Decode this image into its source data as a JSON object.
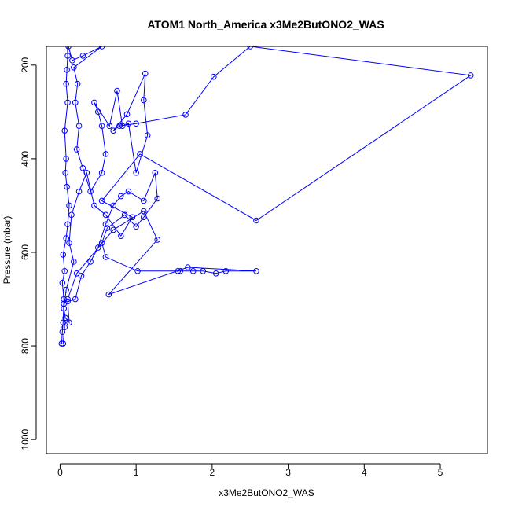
{
  "chart_data": {
    "type": "line",
    "title": "ATOM1 North_America x3Me2ButONO2_WAS",
    "xlabel": "x3Me2ButONO2_WAS",
    "ylabel": "Pressure (mbar)",
    "xlim": [
      -0.18,
      5.62
    ],
    "ylim": [
      1030,
      160
    ],
    "y_reversed": true,
    "x_ticks": [
      0,
      1,
      2,
      3,
      4,
      5
    ],
    "y_ticks": [
      200,
      400,
      600,
      800,
      1000
    ],
    "grid": false,
    "legend": "none",
    "color": "#0000ff",
    "points": [
      [
        0.02,
        795
      ],
      [
        0.03,
        770
      ],
      [
        0.04,
        750
      ],
      [
        0.05,
        700
      ],
      [
        0.03,
        665
      ],
      [
        0.06,
        640
      ],
      [
        0.04,
        605
      ],
      [
        0.08,
        570
      ],
      [
        0.1,
        540
      ],
      [
        0.12,
        500
      ],
      [
        0.09,
        460
      ],
      [
        0.07,
        430
      ],
      [
        0.08,
        400
      ],
      [
        0.06,
        340
      ],
      [
        0.1,
        280
      ],
      [
        0.08,
        240
      ],
      [
        0.09,
        210
      ],
      [
        0.1,
        180
      ],
      [
        0.09,
        120
      ],
      [
        0.11,
        160
      ],
      [
        0.16,
        190
      ],
      [
        0.3,
        180
      ],
      [
        0.55,
        160
      ],
      [
        0.18,
        205
      ],
      [
        0.23,
        240
      ],
      [
        0.2,
        280
      ],
      [
        0.25,
        330
      ],
      [
        0.22,
        380
      ],
      [
        0.3,
        420
      ],
      [
        0.4,
        470
      ],
      [
        0.55,
        430
      ],
      [
        0.6,
        390
      ],
      [
        0.55,
        330
      ],
      [
        0.5,
        300
      ],
      [
        0.45,
        280
      ],
      [
        0.65,
        330
      ],
      [
        0.75,
        255
      ],
      [
        0.82,
        330
      ],
      [
        0.9,
        325
      ],
      [
        1.0,
        430
      ],
      [
        1.15,
        350
      ],
      [
        1.1,
        275
      ],
      [
        1.12,
        218
      ],
      [
        0.88,
        305
      ],
      [
        0.7,
        340
      ],
      [
        0.78,
        330
      ],
      [
        1.0,
        325
      ],
      [
        1.65,
        306
      ],
      [
        2.02,
        225
      ],
      [
        2.5,
        160
      ],
      [
        5.4,
        222
      ],
      [
        2.58,
        532
      ],
      [
        1.05,
        390
      ],
      [
        0.55,
        490
      ],
      [
        0.95,
        525
      ],
      [
        0.8,
        565
      ],
      [
        0.6,
        520
      ],
      [
        0.45,
        500
      ],
      [
        0.35,
        430
      ],
      [
        0.25,
        470
      ],
      [
        0.15,
        520
      ],
      [
        0.12,
        580
      ],
      [
        0.18,
        620
      ],
      [
        0.08,
        680
      ],
      [
        0.05,
        720
      ],
      [
        0.07,
        740
      ],
      [
        0.12,
        750
      ],
      [
        0.1,
        705
      ],
      [
        0.2,
        700
      ],
      [
        0.28,
        650
      ],
      [
        0.4,
        620
      ],
      [
        0.5,
        590
      ],
      [
        0.6,
        540
      ],
      [
        0.7,
        500
      ],
      [
        0.8,
        480
      ],
      [
        0.9,
        470
      ],
      [
        1.1,
        490
      ],
      [
        1.25,
        430
      ],
      [
        1.28,
        485
      ],
      [
        1.1,
        525
      ],
      [
        1.0,
        545
      ],
      [
        0.85,
        520
      ],
      [
        0.62,
        548
      ],
      [
        0.55,
        580
      ],
      [
        0.6,
        610
      ],
      [
        1.02,
        640
      ],
      [
        1.55,
        640
      ],
      [
        1.58,
        640
      ],
      [
        1.75,
        640
      ],
      [
        1.88,
        640
      ],
      [
        2.05,
        645
      ],
      [
        2.18,
        640
      ],
      [
        2.58,
        640
      ],
      [
        1.68,
        632
      ],
      [
        0.64,
        690
      ],
      [
        1.28,
        573
      ],
      [
        1.1,
        512
      ],
      [
        0.7,
        552
      ],
      [
        0.22,
        645
      ],
      [
        0.1,
        700
      ],
      [
        0.05,
        710
      ],
      [
        0.06,
        760
      ],
      [
        0.04,
        795
      ]
    ]
  }
}
